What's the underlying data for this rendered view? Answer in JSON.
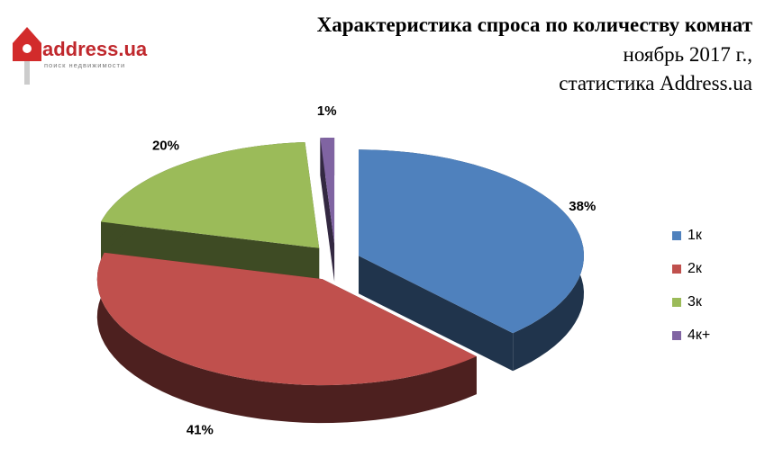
{
  "logo": {
    "name": "address.ua",
    "tagline": "поиск недвижимости"
  },
  "chart_data": {
    "type": "pie3d",
    "title": "Характеристика спроса по количеству комнат",
    "subtitle": [
      "ноябрь 2017 г.,",
      "статистика Address.ua"
    ],
    "categories": [
      "1к",
      "2к",
      "3к",
      "4к+"
    ],
    "values": [
      38,
      41,
      20,
      1
    ],
    "value_labels": [
      "38%",
      "41%",
      "20%",
      "1%"
    ],
    "colors": [
      "#4f81bd",
      "#c0504d",
      "#9bbb59",
      "#8064a2"
    ],
    "legend": "right"
  }
}
